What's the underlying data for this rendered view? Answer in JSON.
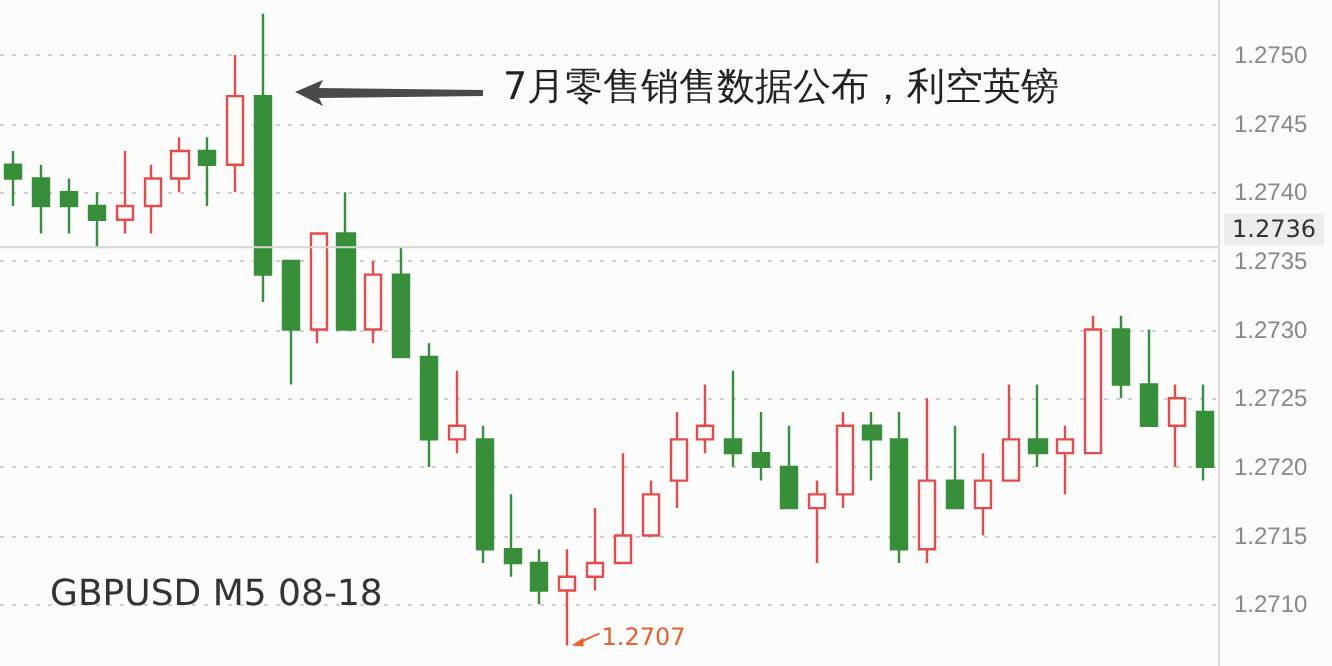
{
  "chart_data": {
    "type": "candlestick",
    "title": "GBPUSD M5 08-18",
    "categories": [
      null,
      null,
      null,
      null,
      null,
      null,
      null,
      null,
      null,
      null,
      null,
      null,
      null,
      null,
      null,
      null,
      null,
      null,
      null,
      null,
      null,
      null,
      null,
      null,
      null,
      null,
      null,
      null,
      null,
      null,
      null,
      null,
      null,
      null,
      null,
      null,
      null,
      null,
      null,
      null,
      null,
      null,
      null,
      null
    ],
    "ohlc": [
      [
        1.2742,
        1.2743,
        1.2739,
        1.2741
      ],
      [
        1.2741,
        1.2742,
        1.2737,
        1.2739
      ],
      [
        1.274,
        1.2741,
        1.2737,
        1.2739
      ],
      [
        1.2739,
        1.274,
        1.2736,
        1.2738
      ],
      [
        1.2738,
        1.2743,
        1.2737,
        1.2739
      ],
      [
        1.2739,
        1.2742,
        1.2737,
        1.2741
      ],
      [
        1.2741,
        1.2744,
        1.274,
        1.2743
      ],
      [
        1.2743,
        1.2744,
        1.2739,
        1.2742
      ],
      [
        1.2742,
        1.275,
        1.274,
        1.2747
      ],
      [
        1.2747,
        1.2753,
        1.2732,
        1.2734
      ],
      [
        1.2735,
        1.2735,
        1.2726,
        1.273
      ],
      [
        1.273,
        1.2737,
        1.2729,
        1.2737
      ],
      [
        1.2737,
        1.274,
        1.273,
        1.273
      ],
      [
        1.273,
        1.2735,
        1.2729,
        1.2734
      ],
      [
        1.2734,
        1.2736,
        1.2728,
        1.2728
      ],
      [
        1.2728,
        1.2729,
        1.272,
        1.2722
      ],
      [
        1.2722,
        1.2727,
        1.2721,
        1.2723
      ],
      [
        1.2722,
        1.2723,
        1.2713,
        1.2714
      ],
      [
        1.2714,
        1.2718,
        1.2712,
        1.2713
      ],
      [
        1.2713,
        1.2714,
        1.271,
        1.2711
      ],
      [
        1.2711,
        1.2714,
        1.2707,
        1.2712
      ],
      [
        1.2712,
        1.2717,
        1.2711,
        1.2713
      ],
      [
        1.2713,
        1.2721,
        1.2713,
        1.2715
      ],
      [
        1.2715,
        1.2719,
        1.2715,
        1.2718
      ],
      [
        1.2719,
        1.2724,
        1.2717,
        1.2722
      ],
      [
        1.2722,
        1.2726,
        1.2721,
        1.2723
      ],
      [
        1.2722,
        1.2727,
        1.272,
        1.2721
      ],
      [
        1.2721,
        1.2724,
        1.2719,
        1.272
      ],
      [
        1.272,
        1.2723,
        1.2717,
        1.2717
      ],
      [
        1.2717,
        1.2719,
        1.2713,
        1.2718
      ],
      [
        1.2718,
        1.2724,
        1.2717,
        1.2723
      ],
      [
        1.2723,
        1.2724,
        1.2719,
        1.2722
      ],
      [
        1.2722,
        1.2724,
        1.2713,
        1.2714
      ],
      [
        1.2714,
        1.2725,
        1.2713,
        1.2719
      ],
      [
        1.2719,
        1.2723,
        1.2717,
        1.2717
      ],
      [
        1.2717,
        1.2721,
        1.2715,
        1.2719
      ],
      [
        1.2719,
        1.2726,
        1.2719,
        1.2722
      ],
      [
        1.2722,
        1.2726,
        1.272,
        1.2721
      ],
      [
        1.2721,
        1.2723,
        1.2718,
        1.2722
      ],
      [
        1.2721,
        1.2731,
        1.2721,
        1.273
      ],
      [
        1.273,
        1.2731,
        1.2725,
        1.2726
      ],
      [
        1.2726,
        1.273,
        1.2723,
        1.2723
      ],
      [
        1.2723,
        1.2726,
        1.272,
        1.2725
      ],
      [
        1.2724,
        1.2726,
        1.2719,
        1.272
      ]
    ],
    "colors": [
      "#378f3a",
      "#378f3a",
      "#378f3a",
      "#378f3a",
      "#e84a4a",
      "#e84a4a",
      "#e84a4a",
      "#378f3a",
      "#e84a4a",
      "#378f3a",
      "#378f3a",
      "#e84a4a",
      "#378f3a",
      "#e84a4a",
      "#378f3a",
      "#378f3a",
      "#e84a4a",
      "#378f3a",
      "#378f3a",
      "#378f3a",
      "#e84a4a",
      "#e84a4a",
      "#e84a4a",
      "#e84a4a",
      "#e84a4a",
      "#e84a4a",
      "#378f3a",
      "#378f3a",
      "#378f3a",
      "#e84a4a",
      "#e84a4a",
      "#378f3a",
      "#378f3a",
      "#e84a4a",
      "#378f3a",
      "#e84a4a",
      "#e84a4a",
      "#378f3a",
      "#e84a4a",
      "#e84a4a",
      "#378f3a",
      "#378f3a",
      "#e84a4a",
      "#378f3a"
    ],
    "ylim": [
      1.27055,
      1.2754
    ],
    "yticks": [
      {
        "value": 1.271,
        "label": "1.2710"
      },
      {
        "value": 1.2715,
        "label": "1.2715"
      },
      {
        "value": 1.272,
        "label": "1.2720"
      },
      {
        "value": 1.2725,
        "label": "1.2725"
      },
      {
        "value": 1.273,
        "label": "1.2730"
      },
      {
        "value": 1.2735,
        "label": "1.2735"
      },
      {
        "value": 1.274,
        "label": "1.2740"
      },
      {
        "value": 1.2745,
        "label": "1.2745"
      },
      {
        "value": 1.275,
        "label": "1.2750"
      }
    ],
    "ref_lines": [
      {
        "axis": "y",
        "value": 1.2736,
        "label": "1.2736",
        "color": "#d6d6d6"
      }
    ],
    "annotations": [
      "7月零售销售数据公布，利空英镑",
      "1.2707"
    ],
    "grid": "y",
    "tick_labels": "y"
  }
}
